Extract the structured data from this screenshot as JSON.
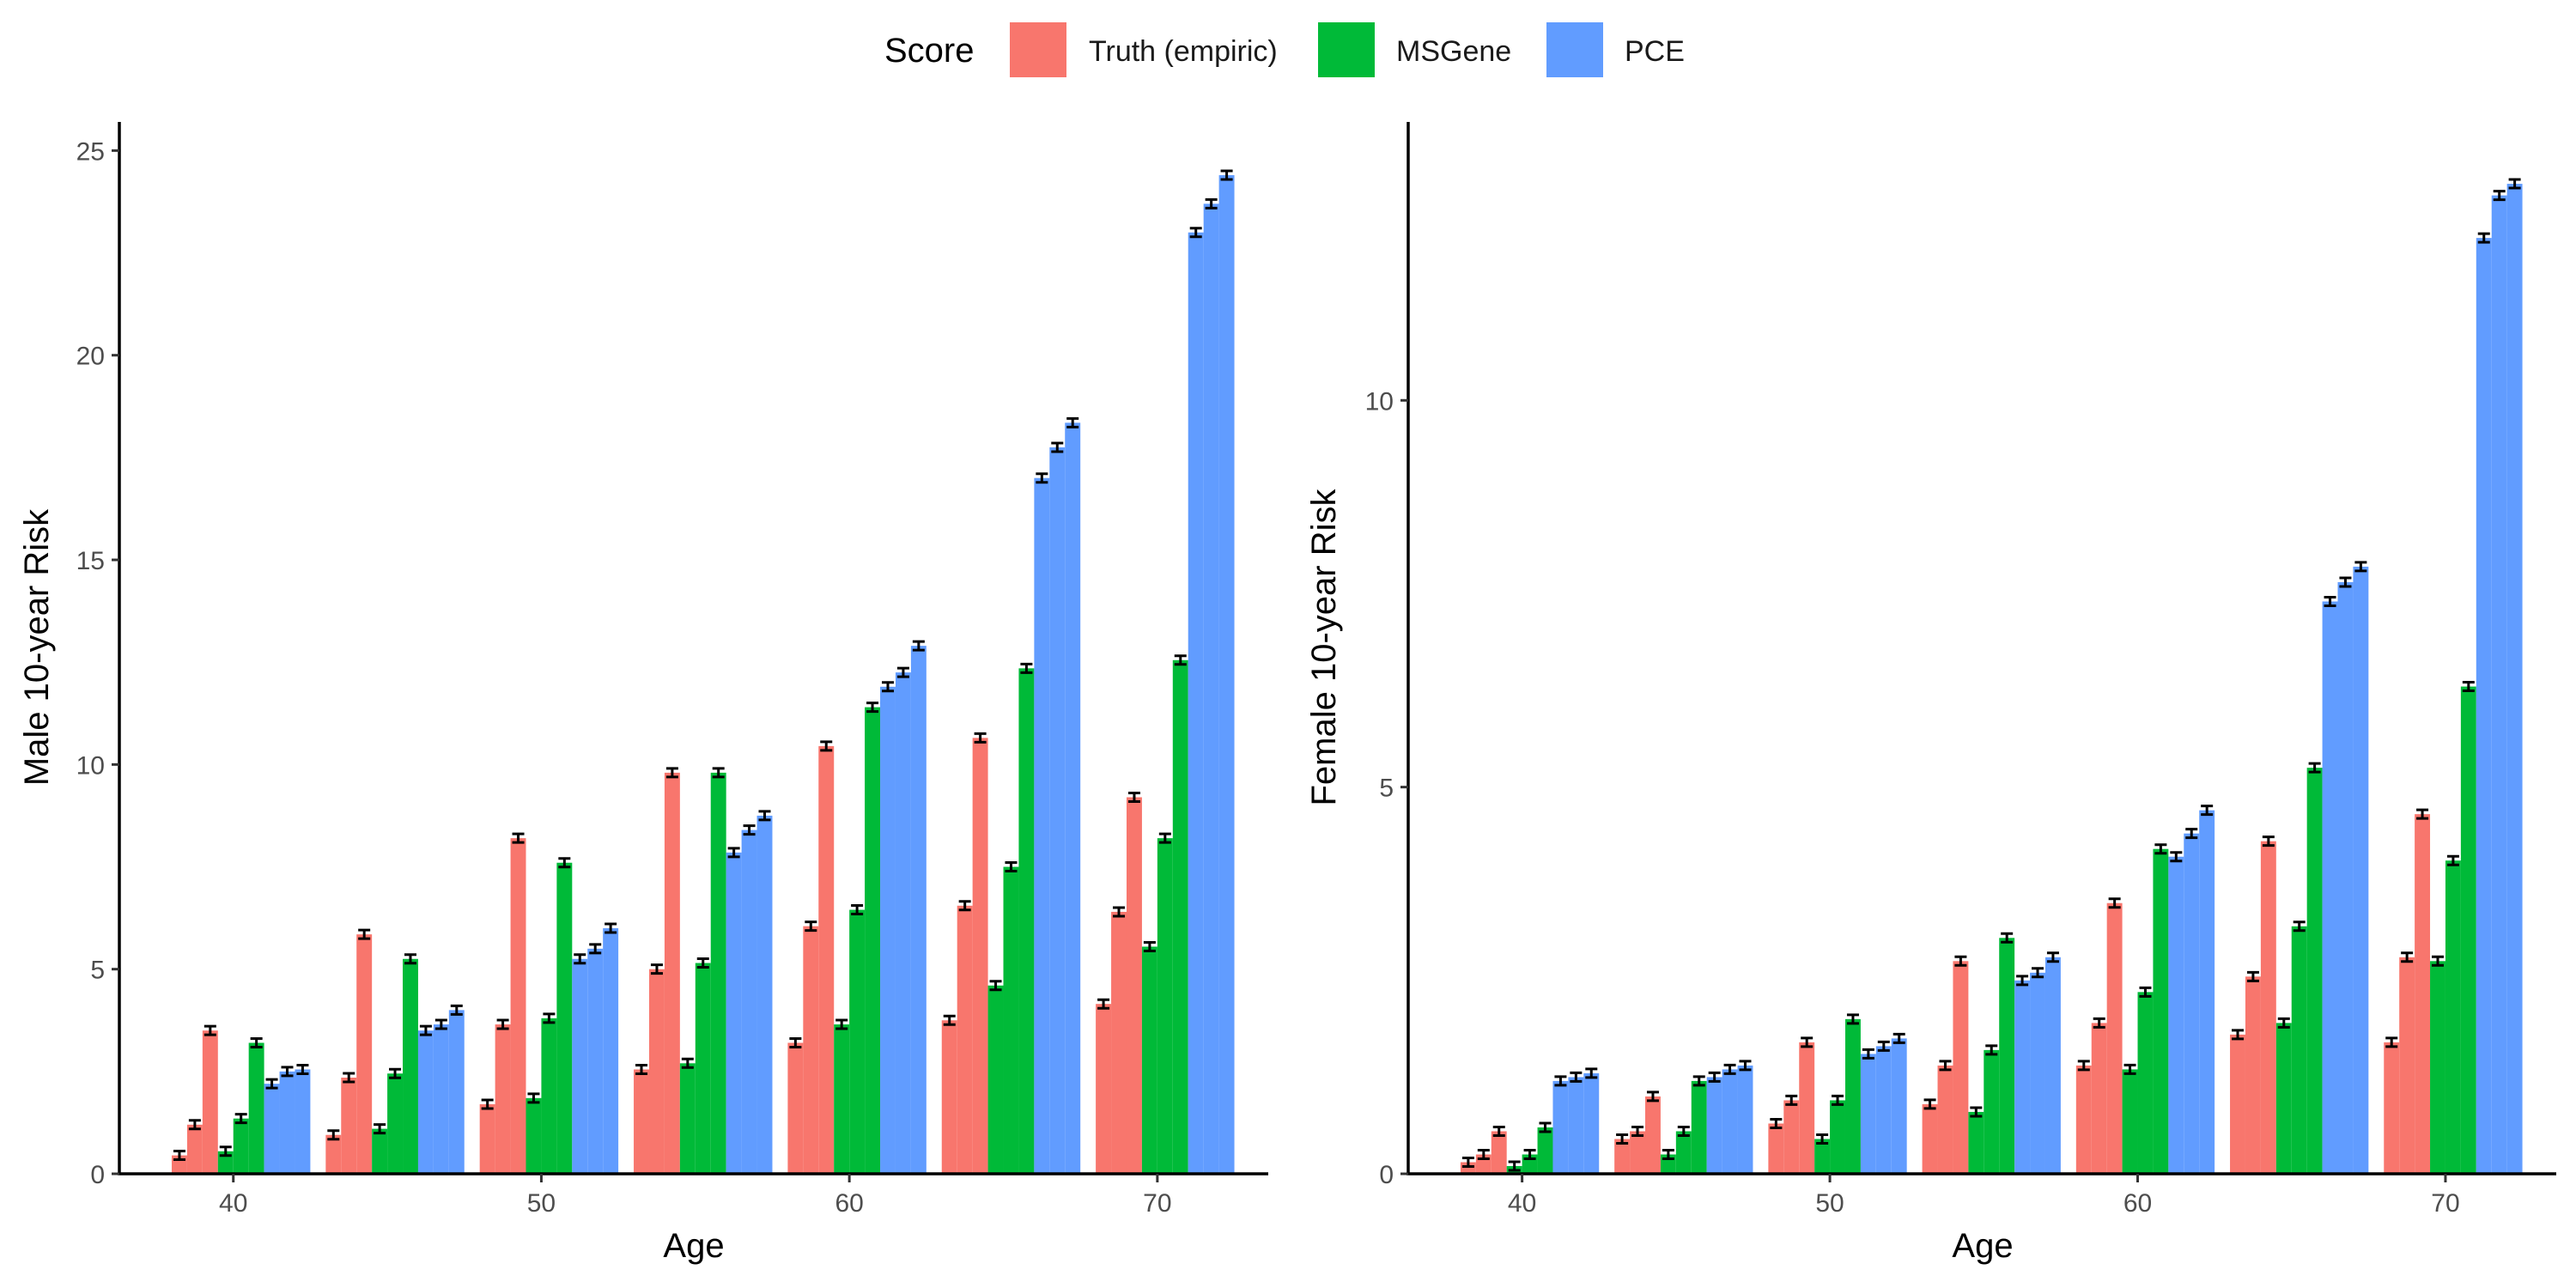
{
  "legend": {
    "title": "Score",
    "entries": [
      {
        "label": "Truth (empiric)",
        "color": "#F8766D"
      },
      {
        "label": "MSGene",
        "color": "#00BA38"
      },
      {
        "label": "PCE",
        "color": "#619CFF"
      }
    ]
  },
  "chart_data": [
    {
      "type": "bar",
      "xlabel": "Age",
      "ylabel": "Male 10-year Risk",
      "ylim": [
        0,
        25.7
      ],
      "xlim": [
        36.3,
        73.6
      ],
      "yticks": [
        0,
        5,
        10,
        15,
        20,
        25
      ],
      "ytick_labels": [
        "0",
        "5",
        "10",
        "15",
        "20",
        "25"
      ],
      "xticks": [
        40,
        50,
        60,
        70
      ],
      "xtick_labels": [
        "40",
        "50",
        "60",
        "70"
      ],
      "grid": false,
      "bar_width": 0.5,
      "group_starts": [
        38,
        43,
        48,
        53,
        58,
        63,
        68
      ],
      "series": [
        {
          "name": "Truth (empiric)",
          "color": "#F8766D",
          "values": [
            [
              0.45,
              1.2,
              3.5
            ],
            [
              0.95,
              2.35,
              5.85
            ],
            [
              1.7,
              3.65,
              8.2
            ],
            [
              2.55,
              5.0,
              9.8
            ],
            [
              3.2,
              6.05,
              10.45
            ],
            [
              3.75,
              6.55,
              10.65
            ],
            [
              4.15,
              6.4,
              9.2
            ]
          ]
        },
        {
          "name": "MSGene",
          "color": "#00BA38",
          "values": [
            [
              0.55,
              1.35,
              3.2
            ],
            [
              1.1,
              2.45,
              5.25
            ],
            [
              1.85,
              3.8,
              7.6
            ],
            [
              2.7,
              5.15,
              9.8
            ],
            [
              3.65,
              6.45,
              11.4
            ],
            [
              4.6,
              7.5,
              12.35
            ],
            [
              5.55,
              8.2,
              12.55
            ]
          ]
        },
        {
          "name": "PCE",
          "color": "#619CFF",
          "values": [
            [
              2.2,
              2.5,
              2.55
            ],
            [
              3.5,
              3.65,
              4.0
            ],
            [
              5.25,
              5.5,
              6.0
            ],
            [
              7.85,
              8.4,
              8.75
            ],
            [
              11.9,
              12.25,
              12.9
            ],
            [
              17.0,
              17.75,
              18.35
            ],
            [
              23.0,
              23.7,
              24.4
            ]
          ]
        }
      ]
    },
    {
      "type": "bar",
      "xlabel": "Age",
      "ylabel": "Female 10-year Risk",
      "ylim": [
        0,
        13.6
      ],
      "xlim": [
        36.3,
        73.6
      ],
      "yticks": [
        0,
        5,
        10
      ],
      "ytick_labels": [
        "0",
        "5",
        "10"
      ],
      "xticks": [
        40,
        50,
        60,
        70
      ],
      "xtick_labels": [
        "40",
        "50",
        "60",
        "70"
      ],
      "grid": false,
      "bar_width": 0.5,
      "group_starts": [
        38,
        43,
        48,
        53,
        58,
        63,
        68
      ],
      "series": [
        {
          "name": "Truth (empiric)",
          "color": "#F8766D",
          "values": [
            [
              0.15,
              0.25,
              0.55
            ],
            [
              0.45,
              0.55,
              1.0
            ],
            [
              0.65,
              0.95,
              1.7
            ],
            [
              0.9,
              1.4,
              2.75
            ],
            [
              1.4,
              1.95,
              3.5
            ],
            [
              1.8,
              2.55,
              4.3
            ],
            [
              1.7,
              2.8,
              4.65
            ]
          ]
        },
        {
          "name": "MSGene",
          "color": "#00BA38",
          "values": [
            [
              0.1,
              0.25,
              0.6
            ],
            [
              0.25,
              0.55,
              1.2
            ],
            [
              0.45,
              0.95,
              2.0
            ],
            [
              0.8,
              1.6,
              3.05
            ],
            [
              1.35,
              2.35,
              4.2
            ],
            [
              1.95,
              3.2,
              5.25
            ],
            [
              2.75,
              4.05,
              6.3
            ]
          ]
        },
        {
          "name": "PCE",
          "color": "#619CFF",
          "values": [
            [
              1.2,
              1.25,
              1.3
            ],
            [
              1.25,
              1.35,
              1.4
            ],
            [
              1.55,
              1.65,
              1.75
            ],
            [
              2.5,
              2.6,
              2.8
            ],
            [
              4.1,
              4.4,
              4.7
            ],
            [
              7.4,
              7.65,
              7.85
            ],
            [
              12.1,
              12.65,
              12.8
            ]
          ]
        }
      ]
    }
  ]
}
